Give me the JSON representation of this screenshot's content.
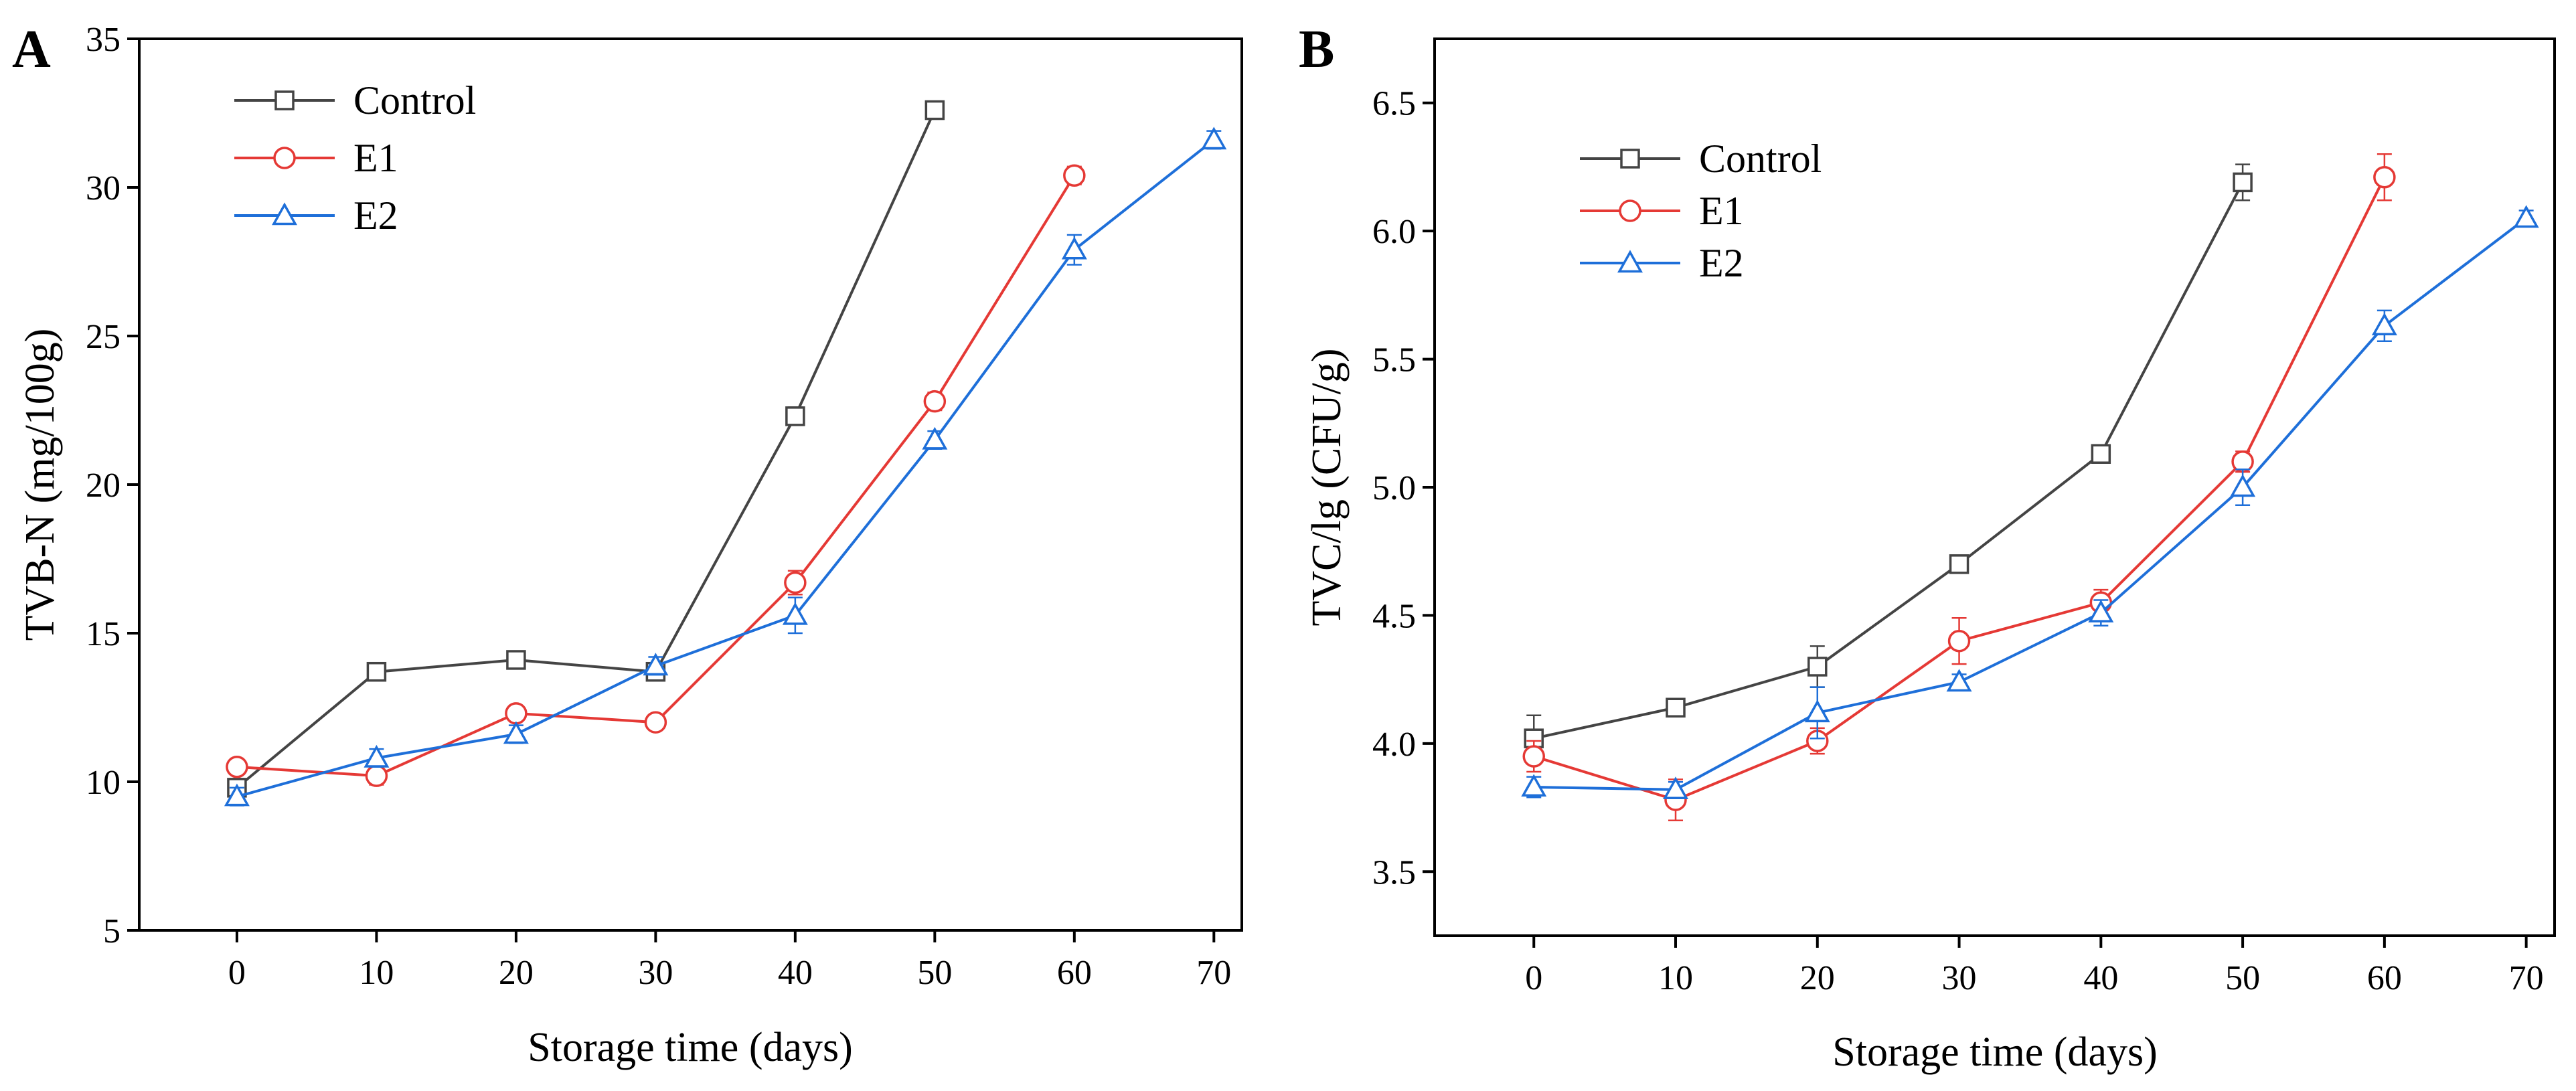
{
  "chart_data": [
    {
      "panel": "A",
      "type": "line",
      "xlabel": "Storage time (days)",
      "ylabel": "TVB-N (mg/100g)",
      "xlim": [
        -7,
        72
      ],
      "ylim": [
        5,
        35
      ],
      "xticks": [
        0,
        10,
        20,
        30,
        40,
        50,
        60,
        70
      ],
      "yticks": [
        5,
        10,
        15,
        20,
        25,
        30,
        35
      ],
      "legend": "top-left",
      "series": [
        {
          "name": "Control",
          "color": "#444444",
          "marker": "square",
          "x": [
            0,
            10,
            20,
            30,
            40,
            50
          ],
          "y": [
            9.8,
            13.7,
            14.1,
            13.7,
            22.3,
            32.6
          ],
          "err": [
            0.3,
            0.2,
            0.2,
            0.2,
            0.3,
            0.2
          ]
        },
        {
          "name": "E1",
          "color": "#e53935",
          "marker": "circle",
          "x": [
            0,
            10,
            20,
            30,
            40,
            50,
            60
          ],
          "y": [
            10.5,
            10.2,
            12.3,
            12.0,
            16.7,
            22.8,
            30.4
          ],
          "err": [
            0.2,
            0.3,
            0.2,
            0.2,
            0.4,
            0.3,
            0.3
          ]
        },
        {
          "name": "E2",
          "color": "#1e6fd9",
          "marker": "triangle",
          "x": [
            0,
            10,
            20,
            30,
            40,
            50,
            60,
            70
          ],
          "y": [
            9.5,
            10.8,
            11.6,
            13.9,
            15.6,
            21.5,
            27.9,
            31.6
          ],
          "err": [
            0.3,
            0.3,
            0.3,
            0.3,
            0.6,
            0.3,
            0.5,
            0.3
          ]
        }
      ]
    },
    {
      "panel": "B",
      "type": "line",
      "xlabel": "Storage time (days)",
      "ylabel": "TVC/lg (CFU/g)",
      "xlim": [
        -7,
        72
      ],
      "ylim": [
        3.25,
        6.75
      ],
      "xticks": [
        0,
        10,
        20,
        30,
        40,
        50,
        60,
        70
      ],
      "yticks": [
        3.5,
        4.0,
        4.5,
        5.0,
        5.5,
        6.0,
        6.5
      ],
      "legend": "top-left",
      "series": [
        {
          "name": "Control",
          "color": "#444444",
          "marker": "square",
          "x": [
            0,
            10,
            20,
            30,
            40,
            50
          ],
          "y": [
            4.02,
            4.14,
            4.3,
            4.7,
            5.13,
            6.19
          ],
          "err": [
            0.09,
            0.03,
            0.08,
            0.02,
            0.03,
            0.07
          ]
        },
        {
          "name": "E1",
          "color": "#e53935",
          "marker": "circle",
          "x": [
            0,
            10,
            20,
            30,
            40,
            50,
            60
          ],
          "y": [
            3.95,
            3.78,
            4.01,
            4.4,
            4.55,
            5.1,
            6.21
          ],
          "err": [
            0.06,
            0.08,
            0.05,
            0.09,
            0.05,
            0.04,
            0.09
          ]
        },
        {
          "name": "E2",
          "color": "#1e6fd9",
          "marker": "triangle",
          "x": [
            0,
            10,
            20,
            30,
            40,
            50,
            60,
            70
          ],
          "y": [
            3.83,
            3.82,
            4.12,
            4.24,
            4.51,
            5.0,
            5.63,
            6.05
          ],
          "err": [
            0.04,
            0.03,
            0.1,
            0.03,
            0.05,
            0.07,
            0.06,
            0.03
          ]
        }
      ]
    }
  ]
}
